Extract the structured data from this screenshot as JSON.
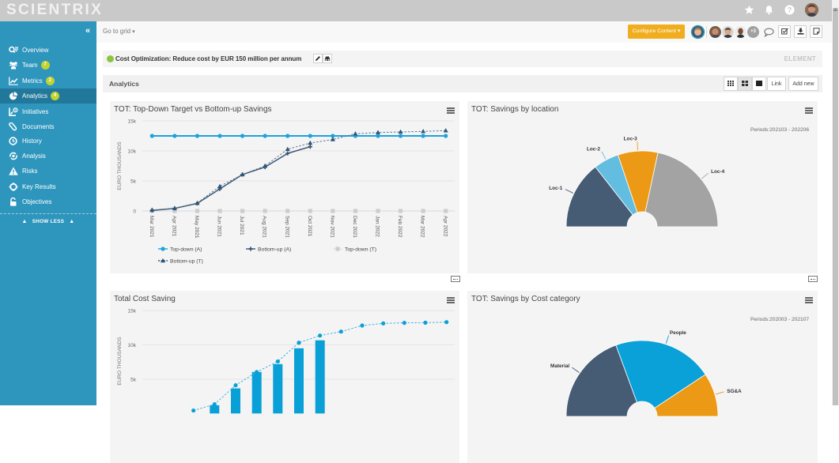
{
  "theme": {
    "sidebar": "#2e95bd",
    "sidebar_active": "#22789b",
    "accent": "#f0ae1f",
    "badge": "#c3d32e",
    "status": "#8bc53f"
  },
  "app": {
    "logo": "SCIENTRIX"
  },
  "topbar": {
    "icons": [
      "star-icon",
      "bell-icon",
      "help-icon",
      "user-avatar"
    ]
  },
  "sidebar": {
    "collapse": "«",
    "items": [
      {
        "label": "Overview",
        "icon": "overview-icon"
      },
      {
        "label": "Team",
        "icon": "team-icon",
        "badge": "7"
      },
      {
        "label": "Metrics",
        "icon": "metrics-icon",
        "badge": "2"
      },
      {
        "label": "Analytics",
        "icon": "analytics-icon",
        "badge": "4",
        "active": true
      },
      {
        "label": "Initiatives",
        "icon": "initiatives-icon"
      },
      {
        "label": "Documents",
        "icon": "documents-icon"
      },
      {
        "label": "History",
        "icon": "history-icon"
      },
      {
        "label": "Analysis",
        "icon": "analysis-icon"
      },
      {
        "label": "Risks",
        "icon": "risks-icon"
      },
      {
        "label": "Key Results",
        "icon": "key-results-icon"
      },
      {
        "label": "Objectives",
        "icon": "objectives-icon"
      }
    ],
    "show_less": "SHOW LESS"
  },
  "subheader": {
    "goto_grid": "Go to grid",
    "configure_button": "Configure Content",
    "avatars_more": "+3",
    "actions": [
      "comment-icon",
      "checklist-icon",
      "download-icon",
      "note-icon"
    ]
  },
  "element": {
    "title": "Cost Optimization: Reduce cost by EUR 150 million per annum",
    "tag": "ELEMENT"
  },
  "analytics": {
    "title": "Analytics",
    "view_modes": [
      "grid-3-icon",
      "grid-2-icon",
      "grid-1-icon"
    ],
    "active_view": "grid-2-icon",
    "link_button": "Link",
    "add_new_button": "Add new"
  },
  "chart_data": [
    {
      "type": "line",
      "title": "TOT: Top-Down Target vs Bottom-up Savings",
      "xlabel": "",
      "ylabel": "EURO THOUSANDS",
      "ylim": [
        0,
        15000
      ],
      "grid": true,
      "legend": "bottom-left",
      "yticks": [
        {
          "value": 0,
          "label": "0"
        },
        {
          "value": 5000,
          "label": "5k"
        },
        {
          "value": 10000,
          "label": "10k"
        },
        {
          "value": 15000,
          "label": "15k"
        }
      ],
      "categories": [
        "Mar 2021",
        "Apr 2021",
        "May 2021",
        "Jun 2021",
        "Jul 2021",
        "Aug 2021",
        "Sep 2021",
        "Oct 2021",
        "Nov 2021",
        "Dec 2021",
        "Jan 2022",
        "Feb 2022",
        "Mar 2022",
        "Apr 2022"
      ],
      "series": [
        {
          "name": "Top-down (A)",
          "color": "#1ca2dc",
          "style": "solid",
          "marker": "circle",
          "values": [
            12500,
            12500,
            12500,
            12500,
            12500,
            12500,
            12500,
            12500,
            12500,
            12500,
            12500,
            12500,
            12500,
            12500
          ]
        },
        {
          "name": "Bottom-up (A)",
          "color": "#3b5675",
          "style": "solid",
          "marker": "cross",
          "values": [
            80,
            430,
            1260,
            3670,
            6070,
            7300,
            9580,
            10710,
            null,
            null,
            null,
            null,
            null,
            null
          ]
        },
        {
          "name": "Top-down (T)",
          "color": "#cdcdcd",
          "style": "none",
          "marker": "square",
          "values": [
            0,
            0,
            0,
            0,
            0,
            0,
            0,
            0,
            0,
            0,
            0,
            0,
            0,
            0
          ]
        },
        {
          "name": "Bottom-up (T)",
          "color": "#2f5576",
          "style": "dashed",
          "marker": "triangle",
          "values": [
            170,
            430,
            1300,
            4100,
            6070,
            7500,
            10270,
            11320,
            11900,
            12860,
            13070,
            13160,
            13250,
            13380
          ]
        }
      ]
    },
    {
      "type": "pie",
      "variant": "semi-donut",
      "title": "TOT: Savings by location",
      "subtitle": "Periods:202103 - 202206",
      "value_unit": "percent share (estimated)",
      "slices": [
        {
          "label": "Loc-1",
          "value": 28.9,
          "color": "#465b74"
        },
        {
          "label": "Loc-2",
          "value": 10.8,
          "color": "#62bde0"
        },
        {
          "label": "Loc-3",
          "value": 17.0,
          "color": "#ec9a15"
        },
        {
          "label": "Loc-4",
          "value": 43.3,
          "color": "#a3a3a3"
        }
      ]
    },
    {
      "type": "bar",
      "title": "Total Cost Saving",
      "xlabel": "",
      "ylabel": "EURO THOUSANDS",
      "ylim": [
        0,
        15000
      ],
      "grid": true,
      "yticks": [
        {
          "value": 5000,
          "label": "5k"
        },
        {
          "value": 10000,
          "label": "10k"
        },
        {
          "value": 15000,
          "label": "15k"
        }
      ],
      "series": [
        {
          "kind": "bar",
          "color": "#08a0d6",
          "values": [
            null,
            null,
            null,
            1200,
            3650,
            6040,
            7190,
            9500,
            10660,
            null,
            null,
            null,
            null,
            null,
            null
          ]
        },
        {
          "kind": "line",
          "style": "dashed",
          "color": "#0aa0d6",
          "values": [
            null,
            null,
            430,
            1340,
            4110,
            6040,
            7580,
            10310,
            11350,
            11930,
            12810,
            13120,
            13200,
            13230,
            13310
          ]
        }
      ]
    },
    {
      "type": "pie",
      "variant": "semi-donut",
      "title": "TOT: Savings by Cost category",
      "subtitle": "Periods:202003 - 202107",
      "value_unit": "percent share (estimated)",
      "slices": [
        {
          "label": "Material",
          "value": 38.8,
          "color": "#465b74"
        },
        {
          "label": "People",
          "value": 42.6,
          "color": "#0aa0d8"
        },
        {
          "label": "SG&A",
          "value": 18.6,
          "color": "#ec9a15"
        }
      ]
    }
  ]
}
